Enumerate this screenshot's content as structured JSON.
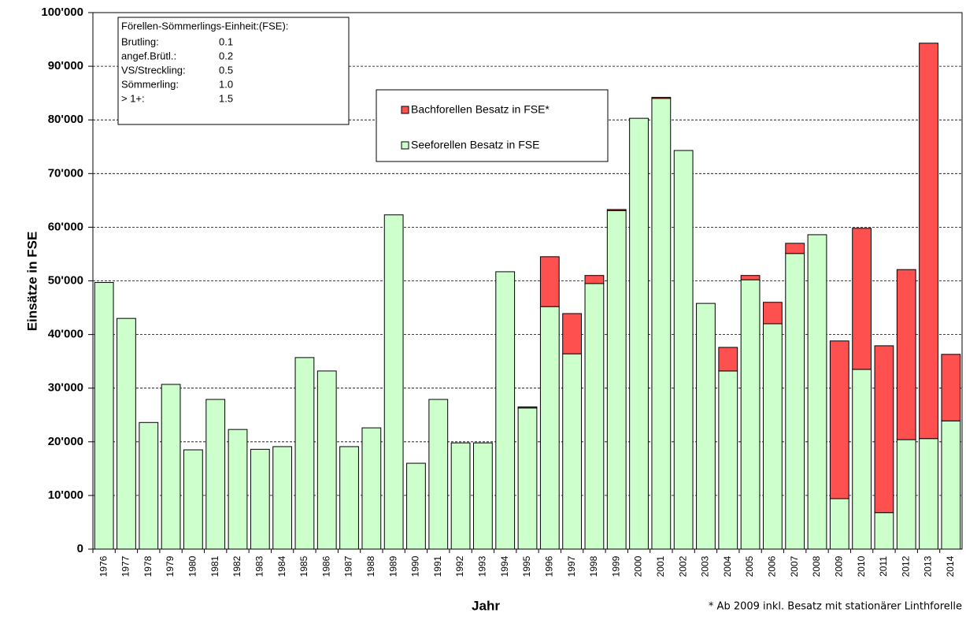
{
  "chart_data": {
    "type": "stacked_bar",
    "y_label": "Einsätze in FSE",
    "x_label": "Jahr",
    "footnote": "* Ab 2009 inkl. Besatz mit stationärer Linthforelle",
    "info_box": {
      "title": "Förellen-Sömmerlings-Einheit:(FSE):",
      "rows": [
        [
          "Brutling:",
          "0.1"
        ],
        [
          "angef.Brütl.:",
          "0.2"
        ],
        [
          "VS/Streckling:",
          "0.5"
        ],
        [
          "Sömmerling:",
          "1.0"
        ],
        [
          "> 1+:",
          "1.5"
        ]
      ]
    },
    "categories": [
      "1976",
      "1977",
      "1978",
      "1979",
      "1980",
      "1981",
      "1982",
      "1983",
      "1984",
      "1985",
      "1986",
      "1987",
      "1988",
      "1989",
      "1990",
      "1991",
      "1992",
      "1993",
      "1994",
      "1995",
      "1996",
      "1997",
      "1998",
      "1999",
      "2000",
      "2001",
      "2002",
      "2003",
      "2004",
      "2005",
      "2006",
      "2007",
      "2008",
      "2009",
      "2010",
      "2011",
      "2012",
      "2013",
      "2014"
    ],
    "series": [
      {
        "name": "Seeforellen Besatz in FSE",
        "color": "#ccffcc",
        "values": [
          49700,
          43000,
          23600,
          30700,
          18500,
          27900,
          22300,
          18600,
          19100,
          35700,
          33200,
          19100,
          22600,
          62300,
          16000,
          27900,
          19800,
          19800,
          51700,
          26300,
          45200,
          36400,
          49500,
          63100,
          80300,
          84000,
          74300,
          45800,
          33200,
          50200,
          42000,
          55100,
          58600,
          9400,
          33500,
          6800,
          20400,
          20600,
          23900
        ]
      },
      {
        "name": "Bachforellen Besatz in FSE*",
        "color": "#ff5050",
        "values": [
          0,
          0,
          0,
          0,
          0,
          0,
          0,
          0,
          0,
          0,
          0,
          0,
          0,
          0,
          0,
          0,
          0,
          0,
          0,
          200,
          9300,
          7500,
          1500,
          200,
          0,
          200,
          0,
          0,
          4400,
          800,
          4000,
          1900,
          0,
          29400,
          26300,
          31100,
          31700,
          73700,
          12400
        ]
      }
    ],
    "ylim": [
      0,
      100000
    ],
    "yticks": [
      0,
      {
        "value": 10000,
        "label": "10'000"
      },
      {
        "value": 20000,
        "label": "20'000"
      },
      {
        "value": 30000,
        "label": "30'000"
      },
      {
        "value": 40000,
        "label": "40'000"
      },
      {
        "value": 50000,
        "label": "50'000"
      },
      {
        "value": 60000,
        "label": "60'000"
      },
      {
        "value": 70000,
        "label": "70'000"
      },
      {
        "value": 80000,
        "label": "80'000"
      },
      {
        "value": 90000,
        "label": "90'000"
      },
      {
        "value": 100000,
        "label": "100'000"
      }
    ],
    "grid": true
  }
}
